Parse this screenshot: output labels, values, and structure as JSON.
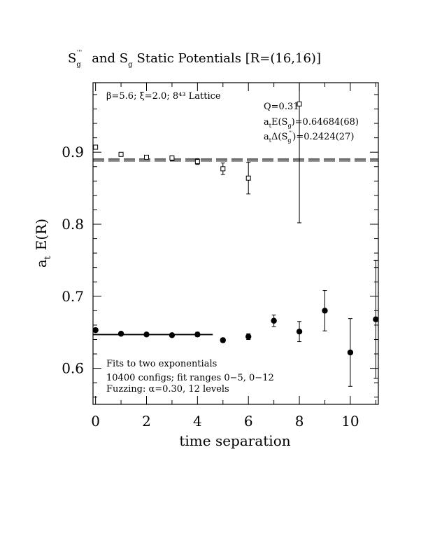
{
  "chart_data": {
    "type": "scatter",
    "title_main": "S",
    "title_main_sub": "g",
    "title_main_sup": "'''",
    "title_mid": "and S",
    "title_mid_sub": "g",
    "title_rest": "Static Potentials [R=(16,16)]",
    "xlabel": "time separation",
    "ylabel_main": "a",
    "ylabel_sub": "t",
    "ylabel_rest": "E(R)",
    "xlim": [
      -0.1,
      11.1
    ],
    "ylim": [
      0.55,
      0.9965
    ],
    "xticks": [
      0,
      2,
      4,
      6,
      8,
      10
    ],
    "xtick_labels": [
      "0",
      "2",
      "4",
      "6",
      "8",
      "10"
    ],
    "yticks": [
      0.6,
      0.7,
      0.8,
      0.9
    ],
    "ytick_labels": [
      "0.6",
      "0.7",
      "0.8",
      "0.9"
    ],
    "annotations": {
      "top_left": "β=5.6; ξ=2.0; 8⁴³ Lattice",
      "q": "Q=0.31",
      "e_fit_main": "a",
      "e_fit_sub1": "t",
      "e_fit_mid": "E(S",
      "e_fit_sub2": "g",
      "e_fit_rest": ")=0.64684(68)",
      "d_fit_main": "a",
      "d_fit_sub1": "t",
      "d_fit_mid": "Δ(S",
      "d_fit_sub2": "g",
      "d_fit_sup": "'''",
      "d_fit_rest": ")=0.2424(27)",
      "bottom_1": "Fits to two exponentials",
      "bottom_2": "10400 configs; fit ranges 0−5, 0−12",
      "bottom_3": "Fuzzing: α=0.30, 12 levels"
    },
    "series": [
      {
        "marker": "square",
        "x": [
          0,
          1,
          2,
          3,
          4,
          5,
          6,
          8
        ],
        "y": [
          0.907,
          0.897,
          0.893,
          0.892,
          0.887,
          0.877,
          0.864,
          0.967
        ],
        "err": [
          0.002,
          0.002,
          0.002,
          0.003,
          0.004,
          0.008,
          0.022,
          0.165
        ]
      },
      {
        "marker": "circle",
        "x": [
          0,
          1,
          2,
          3,
          4,
          5,
          6,
          7,
          8,
          9,
          10,
          11
        ],
        "y": [
          0.653,
          0.648,
          0.647,
          0.646,
          0.647,
          0.639,
          0.644,
          0.666,
          0.651,
          0.68,
          0.622,
          0.668
        ],
        "err": [
          0.002,
          0.002,
          0.002,
          0.002,
          0.003,
          0.003,
          0.004,
          0.008,
          0.014,
          0.028,
          0.047,
          0.082
        ]
      }
    ],
    "fit_lines": [
      {
        "style": "dashed",
        "y": 0.8905,
        "x": [
          -0.1,
          11.1
        ]
      },
      {
        "style": "dashed",
        "y": 0.8878,
        "x": [
          -0.1,
          11.1
        ]
      },
      {
        "style": "solid",
        "y": 0.64684,
        "x": [
          -0.1,
          4.6
        ]
      }
    ]
  }
}
